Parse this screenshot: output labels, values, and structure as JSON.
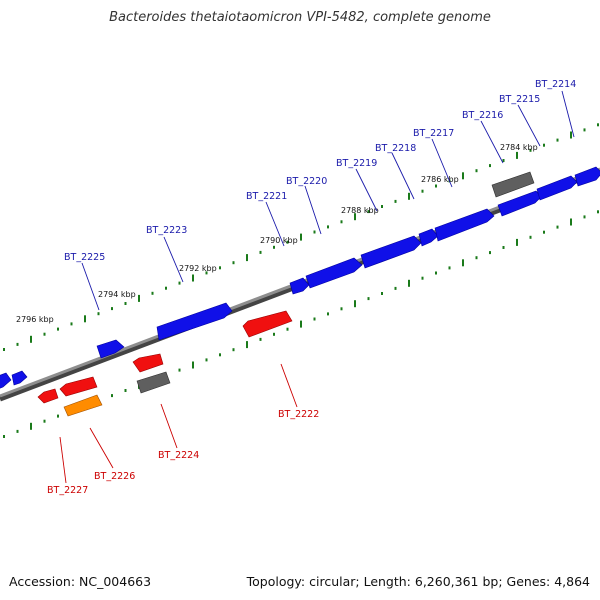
{
  "title": "Bacteroides thetaiotaomicron VPI-5482, complete genome",
  "accession": "Accession: NC_004663",
  "stats": "Topology: circular; Length: 6,260,361 bp; Genes: 4,864",
  "colors": {
    "forward_gene": "#1a1aff",
    "reverse_gene": "#ff0000",
    "pseudo_gene": "#666666",
    "rna_gene": "#ff9900",
    "backbone": "#888888",
    "ticks": "#1a7a1a",
    "forward_label": "#1a1aaa",
    "reverse_label": "#cc0000"
  },
  "scale_labels": [
    "2784 kbp",
    "2786 kbp",
    "2788 kbp",
    "2790 kbp",
    "2792 kbp",
    "2794 kbp",
    "2796 kbp"
  ],
  "forward_genes": [
    "BT_2214",
    "BT_2215",
    "BT_2216",
    "BT_2217",
    "BT_2218",
    "BT_2219",
    "BT_2220",
    "BT_2221",
    "BT_2223",
    "BT_2225"
  ],
  "reverse_genes": [
    "BT_2222",
    "BT_2224",
    "BT_2226",
    "BT_2227"
  ]
}
